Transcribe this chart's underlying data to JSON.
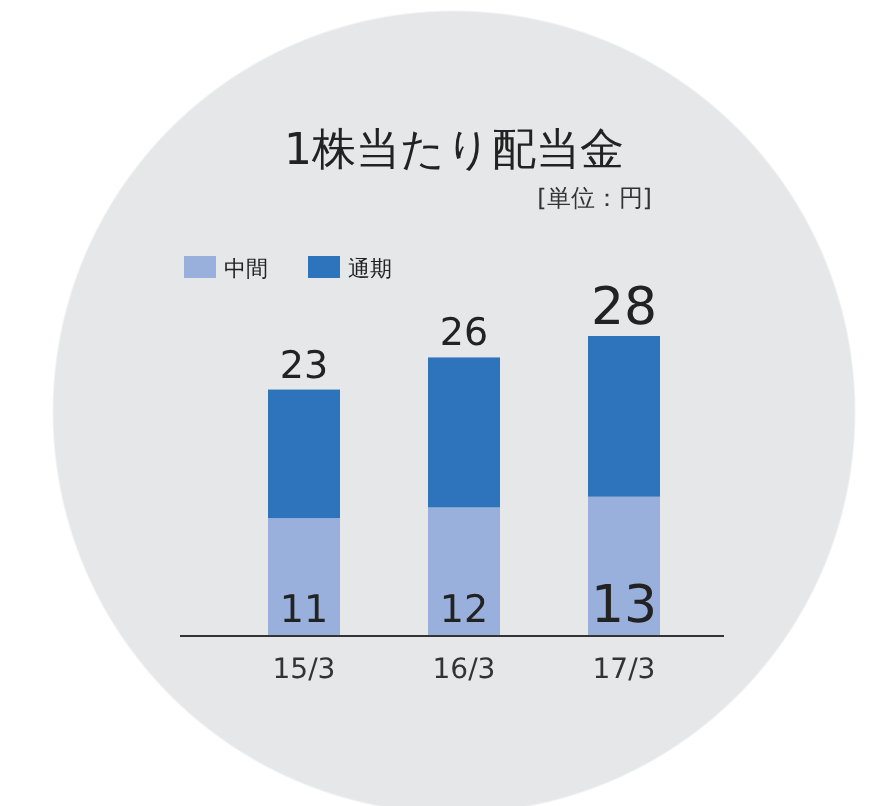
{
  "chart_data": {
    "type": "bar",
    "title": "1株当たり配当金",
    "subtitle": "[単位：円]",
    "categories": [
      "15/3",
      "16/3",
      "17/3"
    ],
    "stacked": true,
    "legend": "top left",
    "series": [
      {
        "name": "中間",
        "color": "#98b0db",
        "values": [
          11,
          12,
          13
        ],
        "value_labels": [
          "11",
          "12",
          "13"
        ]
      },
      {
        "name": "通期",
        "color": "#2e74bd",
        "values": [
          12,
          14,
          15
        ]
      }
    ],
    "totals": [
      "23",
      "26",
      "28"
    ]
  }
}
